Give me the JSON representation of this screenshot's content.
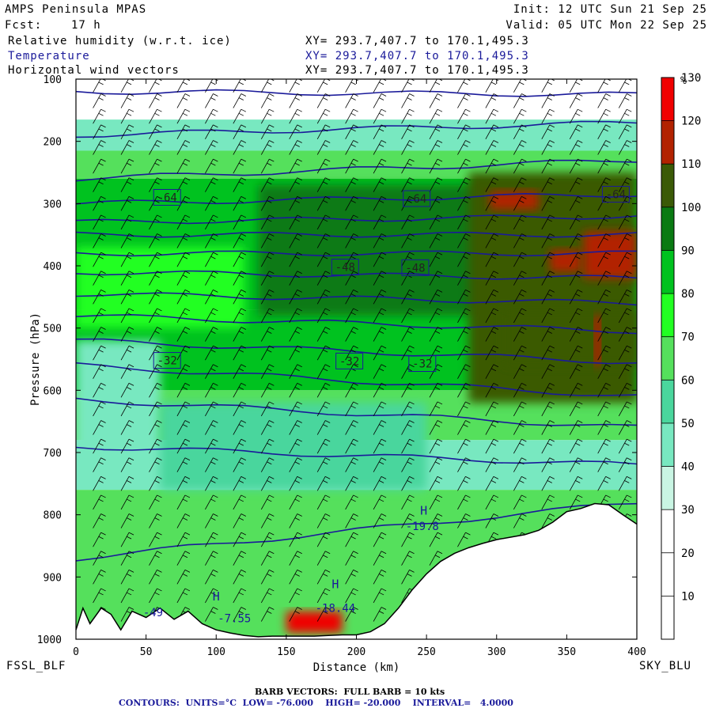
{
  "header": {
    "model": "AMPS Peninsula MPAS",
    "init": "Init: 12 UTC Sun 21 Sep 25",
    "fcst_label": "Fcst:",
    "fcst_value": "17 h",
    "valid": "Valid: 05 UTC Mon 22 Sep 25",
    "fields": [
      {
        "name": "Relative humidity (w.r.t. ice)",
        "xy": "XY= 293.7,407.7 to 170.1,495.3",
        "color": "#000000"
      },
      {
        "name": "Temperature",
        "xy": "XY= 293.7,407.7 to 170.1,495.3",
        "color": "#1a1a9a"
      },
      {
        "name": "Horizontal wind vectors",
        "xy": "XY= 293.7,407.7 to 170.1,495.3",
        "color": "#000000"
      }
    ]
  },
  "footer": {
    "left_station": "FSSL_BLF",
    "right_station": "SKY_BLU",
    "barb_note": "BARB VECTORS:  FULL BARB = 10 kts",
    "contour_note": "CONTOURS:  UNITS=°C  LOW= -76.000    HIGH= -20.000    INTERVAL=   4.0000"
  },
  "chart_data": {
    "type": "heatmap",
    "xlabel": "Distance (km)",
    "ylabel": "Pressure (hPa)",
    "xlim": [
      0,
      400
    ],
    "ylim": [
      1000,
      100
    ],
    "x_ticks": [
      0,
      50,
      100,
      150,
      200,
      250,
      300,
      350,
      400
    ],
    "y_ticks": [
      100,
      200,
      300,
      400,
      500,
      600,
      700,
      800,
      900,
      1000
    ],
    "colorbar": {
      "unit": "%",
      "ticks": [
        10,
        20,
        30,
        40,
        50,
        60,
        70,
        80,
        90,
        100,
        110,
        120,
        130
      ],
      "bins": [
        {
          "from": 0,
          "to": 10,
          "color": "#ffffff"
        },
        {
          "from": 10,
          "to": 20,
          "color": "#ffffff"
        },
        {
          "from": 20,
          "to": 30,
          "color": "#ffffff"
        },
        {
          "from": 30,
          "to": 40,
          "color": "#c9f5e3"
        },
        {
          "from": 40,
          "to": 50,
          "color": "#78e8c0"
        },
        {
          "from": 50,
          "to": 60,
          "color": "#4ad69d"
        },
        {
          "from": 60,
          "to": 70,
          "color": "#55e05c"
        },
        {
          "from": 70,
          "to": 80,
          "color": "#22ff22"
        },
        {
          "from": 80,
          "to": 90,
          "color": "#00c21f"
        },
        {
          "from": 90,
          "to": 100,
          "color": "#0a7a12"
        },
        {
          "from": 100,
          "to": 110,
          "color": "#3a5a06"
        },
        {
          "from": 110,
          "to": 120,
          "color": "#b22200"
        },
        {
          "from": 120,
          "to": 130,
          "color": "#f00000"
        }
      ]
    },
    "rh_layers": [
      {
        "ptop": 100,
        "pbot": 165,
        "rh": 25
      },
      {
        "ptop": 165,
        "pbot": 215,
        "rh": 45
      },
      {
        "ptop": 215,
        "pbot": 260,
        "rh": 68
      },
      {
        "ptop": 260,
        "pbot": 470,
        "rh": 88
      },
      {
        "ptop": 470,
        "pbot": 600,
        "rh": 86
      },
      {
        "ptop": 600,
        "pbot": 680,
        "rh": 62
      },
      {
        "ptop": 680,
        "pbot": 760,
        "rh": 42
      },
      {
        "ptop": 760,
        "pbot": 1000,
        "rh": 62
      }
    ],
    "rh_patches": [
      {
        "x": [
          130,
          300
        ],
        "p": [
          270,
          480
        ],
        "rh": 98
      },
      {
        "x": [
          280,
          400
        ],
        "p": [
          250,
          620
        ],
        "rh": 102
      },
      {
        "x": [
          305,
          400
        ],
        "p": [
          470,
          560
        ],
        "rh": 100
      },
      {
        "x": [
          295,
          330
        ],
        "p": [
          280,
          310
        ],
        "rh": 115
      },
      {
        "x": [
          338,
          360
        ],
        "p": [
          375,
          410
        ],
        "rh": 112
      },
      {
        "x": [
          362,
          400
        ],
        "p": [
          345,
          420
        ],
        "rh": 118
      },
      {
        "x": [
          370,
          374
        ],
        "p": [
          480,
          560
        ],
        "rh": 125
      },
      {
        "x": [
          150,
          190
        ],
        "p": [
          955,
          990
        ],
        "rh": 125
      },
      {
        "x": [
          0,
          120
        ],
        "p": [
          370,
          500
        ],
        "rh": 78
      },
      {
        "x": [
          0,
          60
        ],
        "p": [
          520,
          700
        ],
        "rh": 40
      },
      {
        "x": [
          60,
          250
        ],
        "p": [
          620,
          760
        ],
        "rh": 55
      }
    ],
    "terrain": {
      "x": [
        0,
        5,
        10,
        18,
        25,
        32,
        40,
        50,
        60,
        70,
        80,
        90,
        100,
        110,
        120,
        130,
        140,
        150,
        160,
        170,
        180,
        190,
        200,
        210,
        220,
        230,
        240,
        250,
        260,
        270,
        280,
        290,
        300,
        310,
        320,
        330,
        340,
        350,
        360,
        370,
        380,
        390,
        400
      ],
      "p": [
        985,
        950,
        975,
        950,
        960,
        985,
        955,
        965,
        950,
        968,
        955,
        975,
        985,
        990,
        994,
        996,
        995,
        995,
        995,
        995,
        994,
        993,
        993,
        988,
        975,
        950,
        920,
        895,
        875,
        862,
        853,
        846,
        840,
        836,
        832,
        825,
        812,
        795,
        790,
        782,
        784,
        800,
        815
      ]
    },
    "isotherms_p_left": [
      120,
      190,
      260,
      300,
      330,
      350,
      380,
      410,
      445,
      480,
      520,
      560,
      615,
      690,
      870
    ],
    "isotherms_p_right": [
      125,
      170,
      230,
      285,
      320,
      350,
      380,
      420,
      460,
      505,
      555,
      610,
      660,
      720,
      780
    ],
    "isotherm_labels": [
      {
        "text": "-64",
        "x": 65,
        "p": 290
      },
      {
        "text": "-64",
        "x": 243,
        "p": 292
      },
      {
        "text": "-64",
        "x": 385,
        "p": 285
      },
      {
        "text": "-48",
        "x": 192,
        "p": 402
      },
      {
        "text": "-48",
        "x": 242,
        "p": 403
      },
      {
        "text": "-32",
        "x": 65,
        "p": 552
      },
      {
        "text": "-32",
        "x": 195,
        "p": 553
      },
      {
        "text": "-32",
        "x": 247,
        "p": 557
      },
      {
        "text": "-49",
        "x": 55,
        "p": 957
      },
      {
        "text": "-7.55",
        "x": 113,
        "p": 966
      },
      {
        "text": "-18.44",
        "x": 185,
        "p": 950
      },
      {
        "text": "-19.8",
        "x": 247,
        "p": 818
      }
    ],
    "high_markers": [
      {
        "text": "H",
        "x": 100,
        "p": 938
      },
      {
        "text": "H",
        "x": 185,
        "p": 918
      },
      {
        "text": "H",
        "x": 248,
        "p": 800
      }
    ],
    "barb_columns_x": [
      15,
      35,
      55,
      75,
      95,
      115,
      135,
      155,
      175,
      195,
      215,
      235,
      255,
      275,
      295,
      315,
      335,
      355,
      375,
      390
    ],
    "barb_levels_p": [
      110,
      135,
      160,
      185,
      210,
      240,
      270,
      300,
      330,
      360,
      390,
      420,
      450,
      480,
      510,
      540,
      570,
      600,
      630,
      660,
      690,
      720,
      750,
      780,
      810,
      840,
      870,
      900,
      930,
      960
    ]
  }
}
